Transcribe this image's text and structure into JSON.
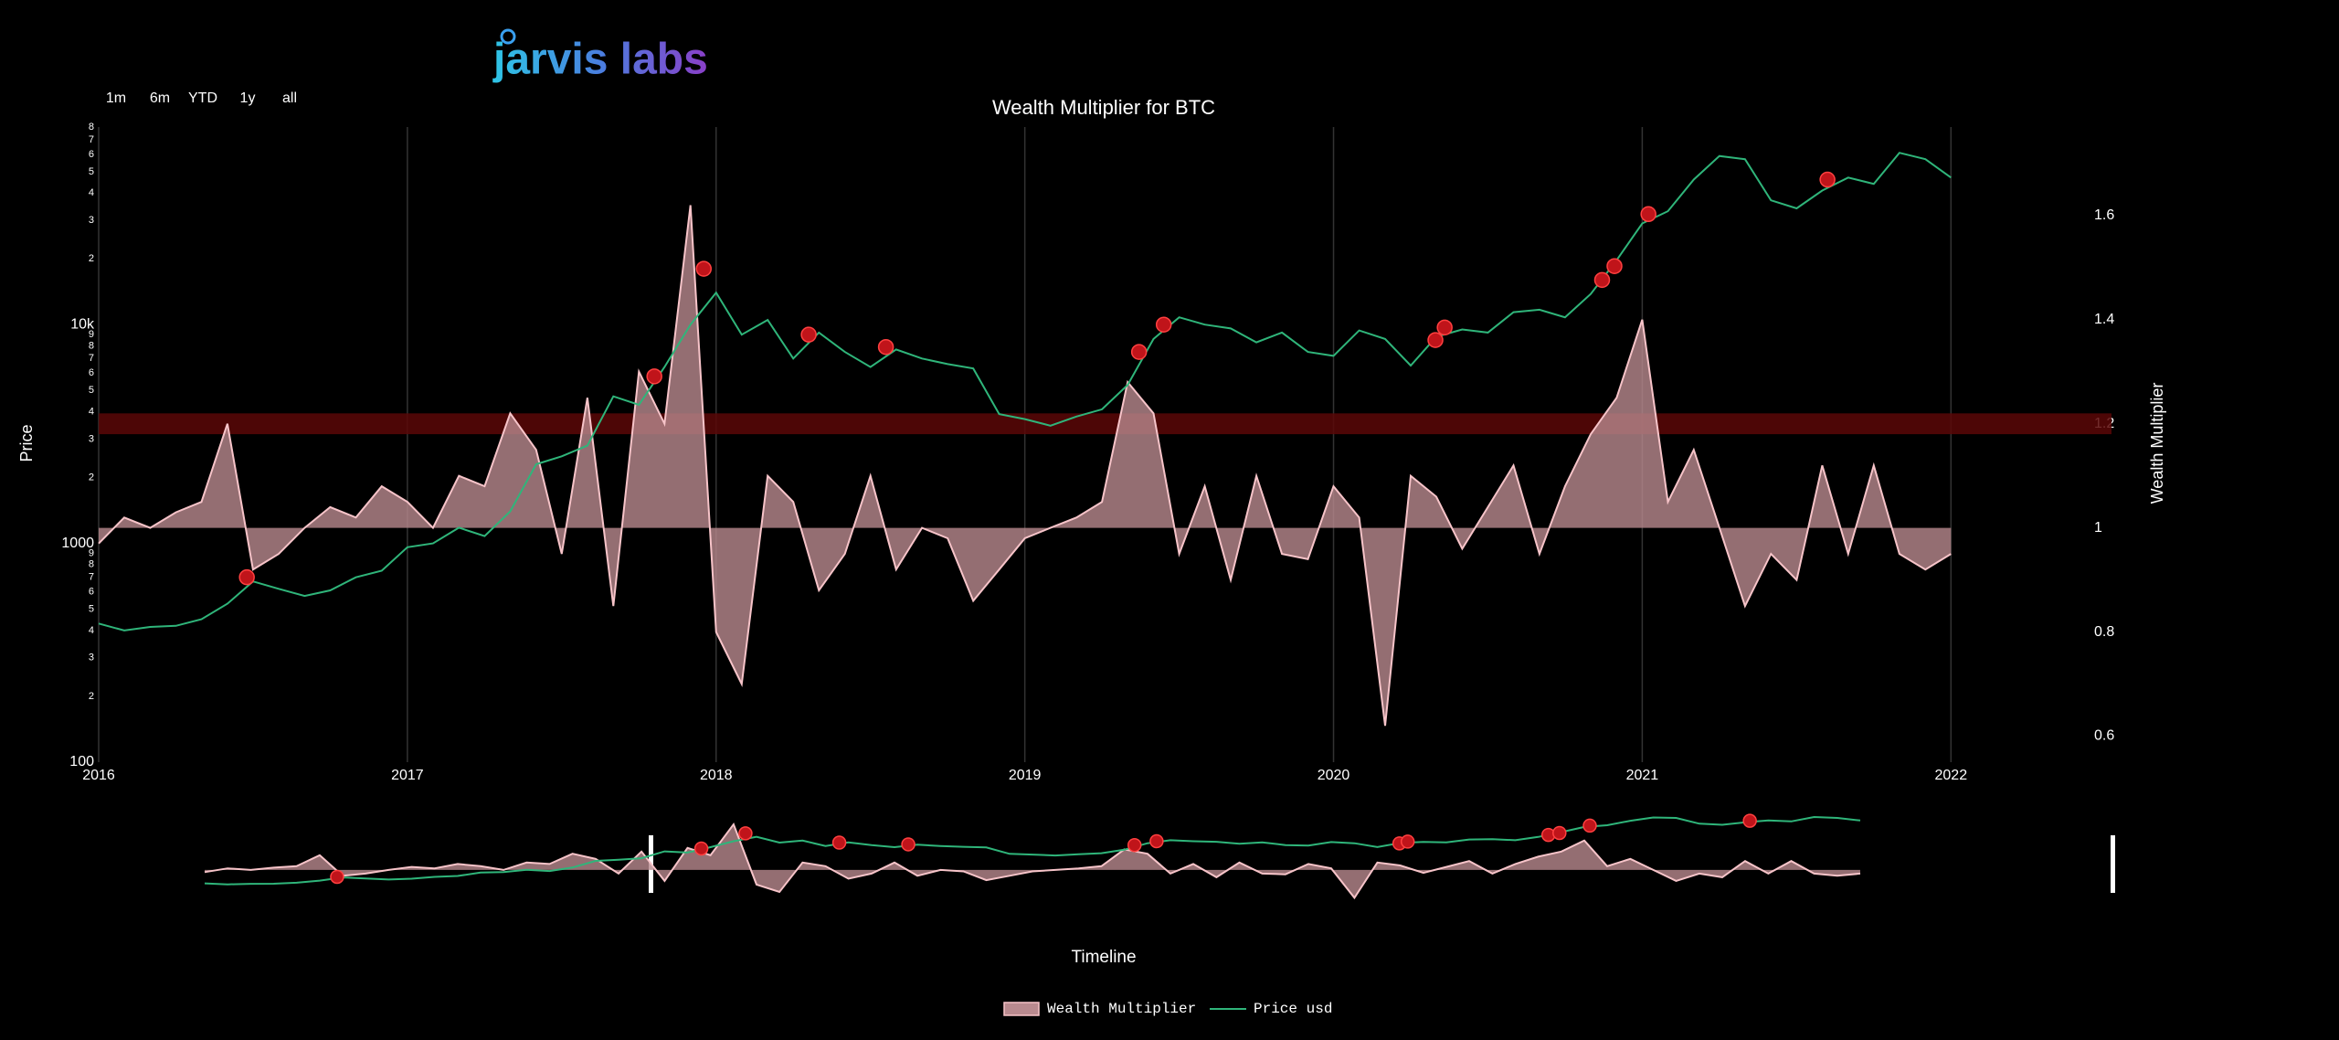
{
  "logo": "jarvis labs",
  "range_buttons": [
    "1m",
    "6m",
    "YTD",
    "1y",
    "all"
  ],
  "chart_data": {
    "type": "line",
    "title": "Wealth Multiplier for BTC",
    "x_label": "Timeline",
    "y_label": "Price",
    "y2_label": "Wealth Multiplier",
    "log_y": true,
    "grid": "x",
    "legend": "bottom",
    "x": [
      2016.0,
      2016.083,
      2016.167,
      2016.25,
      2016.333,
      2016.417,
      2016.5,
      2016.583,
      2016.667,
      2016.75,
      2016.833,
      2016.917,
      2017.0,
      2017.083,
      2017.167,
      2017.25,
      2017.333,
      2017.417,
      2017.5,
      2017.583,
      2017.667,
      2017.75,
      2017.833,
      2017.917,
      2018.0,
      2018.083,
      2018.167,
      2018.25,
      2018.333,
      2018.417,
      2018.5,
      2018.583,
      2018.667,
      2018.75,
      2018.833,
      2018.917,
      2019.0,
      2019.083,
      2019.167,
      2019.25,
      2019.333,
      2019.417,
      2019.5,
      2019.583,
      2019.667,
      2019.75,
      2019.833,
      2019.917,
      2020.0,
      2020.083,
      2020.167,
      2020.25,
      2020.333,
      2020.417,
      2020.5,
      2020.583,
      2020.667,
      2020.75,
      2020.833,
      2020.917,
      2021.0,
      2021.083,
      2021.167,
      2021.25,
      2021.333,
      2021.417,
      2021.5,
      2021.583,
      2021.667,
      2021.75,
      2021.833,
      2021.917,
      2022.0
    ],
    "series": [
      {
        "name": "Wealth Multiplier",
        "color": "#f7c4c9",
        "fill": "#b98a8f",
        "axis": "y2",
        "baseline": 1,
        "values": [
          0.97,
          1.02,
          1.0,
          1.03,
          1.05,
          1.2,
          0.92,
          0.95,
          1.0,
          1.04,
          1.02,
          1.08,
          1.05,
          1.0,
          1.1,
          1.08,
          1.22,
          1.15,
          0.95,
          1.25,
          0.85,
          1.3,
          1.2,
          1.62,
          0.8,
          0.7,
          1.1,
          1.05,
          0.88,
          0.95,
          1.1,
          0.92,
          1.0,
          0.98,
          0.86,
          0.92,
          0.98,
          1.0,
          1.02,
          1.05,
          1.28,
          1.22,
          0.95,
          1.08,
          0.9,
          1.1,
          0.95,
          0.94,
          1.08,
          1.02,
          0.62,
          1.1,
          1.06,
          0.96,
          1.04,
          1.12,
          0.95,
          1.08,
          1.18,
          1.25,
          1.4,
          1.05,
          1.15,
          1.0,
          0.85,
          0.95,
          0.9,
          1.12,
          0.95,
          1.12,
          0.95,
          0.92,
          0.95
        ]
      },
      {
        "name": "Price usd",
        "color": "#2fb57a",
        "values": [
          430,
          400,
          415,
          420,
          450,
          530,
          670,
          620,
          575,
          610,
          700,
          750,
          960,
          1000,
          1180,
          1080,
          1400,
          2300,
          2500,
          2800,
          4700,
          4300,
          6400,
          10000,
          14000,
          9000,
          10500,
          7000,
          9200,
          7500,
          6400,
          7700,
          7000,
          6600,
          6300,
          3900,
          3700,
          3450,
          3800,
          4100,
          5300,
          8600,
          10800,
          10000,
          9600,
          8300,
          9200,
          7500,
          7200,
          9400,
          8600,
          6500,
          8800,
          9500,
          9200,
          11400,
          11700,
          10800,
          13800,
          19700,
          29000,
          33000,
          46000,
          59000,
          57000,
          37000,
          34000,
          41000,
          47000,
          44000,
          61000,
          57000,
          47000
        ]
      }
    ],
    "signals": {
      "color": "#c0141a",
      "x": [
        2016.48,
        2017.8,
        2017.96,
        2018.3,
        2018.55,
        2019.37,
        2019.45,
        2020.33,
        2020.36,
        2020.87,
        2020.91,
        2021.02,
        2021.6
      ],
      "values": [
        700,
        5800,
        18000,
        9000,
        7900,
        7500,
        10000,
        8500,
        9700,
        16000,
        18500,
        32000,
        46000
      ]
    },
    "highlight_band": {
      "range": [
        1.18,
        1.22
      ],
      "color": "#5a0707"
    },
    "xlim": [
      2016,
      2022.52
    ],
    "xticks": [
      2016,
      2017,
      2018,
      2019,
      2020,
      2021,
      2022
    ],
    "ylim": [
      100,
      80000
    ],
    "yticks": [
      100,
      {
        "value": 200,
        "label": "2"
      },
      {
        "value": 300,
        "label": "3"
      },
      {
        "value": 400,
        "label": "4"
      },
      {
        "value": 500,
        "label": "5"
      },
      {
        "value": 600,
        "label": "6"
      },
      {
        "value": 700,
        "label": "7"
      },
      {
        "value": 800,
        "label": "8"
      },
      {
        "value": 900,
        "label": "9"
      },
      1000,
      {
        "value": 2000,
        "label": "2"
      },
      {
        "value": 3000,
        "label": "3"
      },
      {
        "value": 4000,
        "label": "4"
      },
      {
        "value": 5000,
        "label": "5"
      },
      {
        "value": 6000,
        "label": "6"
      },
      {
        "value": 7000,
        "label": "7"
      },
      {
        "value": 8000,
        "label": "8"
      },
      {
        "value": 9000,
        "label": "9"
      },
      {
        "value": 10000,
        "label": "10k"
      },
      {
        "value": 20000,
        "label": "2"
      },
      {
        "value": 30000,
        "label": "3"
      },
      {
        "value": 40000,
        "label": "4"
      },
      {
        "value": 50000,
        "label": "5"
      },
      {
        "value": 60000,
        "label": "6"
      },
      {
        "value": 70000,
        "label": "7"
      },
      {
        "value": 80000,
        "label": "8"
      }
    ],
    "y2lim": [
      0.55,
      1.77
    ],
    "y2ticks": [
      0.6,
      0.8,
      1,
      1.2,
      1.4,
      1.6
    ]
  }
}
